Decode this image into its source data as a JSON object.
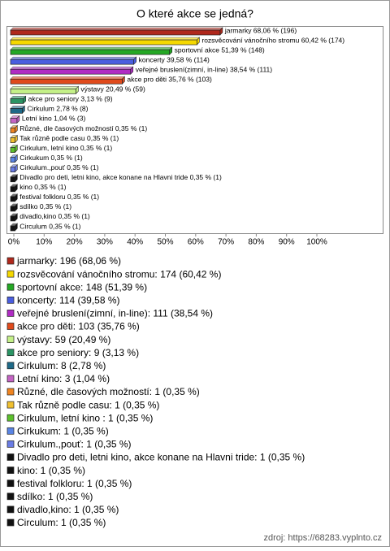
{
  "chart_data": {
    "type": "bar",
    "orientation": "horizontal",
    "title": "O které akce se jedná?",
    "values": [
      68.06,
      60.42,
      51.39,
      39.58,
      38.54,
      35.76,
      20.49,
      3.13,
      2.78,
      1.04,
      0.35,
      0.35,
      0.35,
      0.35,
      0.35,
      0.35,
      0.35,
      0.35,
      0.35,
      0.35,
      0.35
    ],
    "value_labels": [
      "jarmarky 68,06 % (196)",
      "rozsvěcování vánočního stromu 60,42 % (174)",
      "sportovní akce 51,39 % (148)",
      "koncerty 39,58 % (114)",
      "veřejné bruslení(zimní, in-line) 38,54 % (111)",
      "akce pro děti 35,76 % (103)",
      "výstavy 20,49 % (59)",
      "akce pro seniory 3,13 % (9)",
      "Cirkulum 2,78 % (8)",
      "Letní kino 1,04 % (3)",
      "Různé, dle časových možností 0,35 % (1)",
      "Tak různě podle casu 0,35 % (1)",
      "Cirkulum, letní kino  0,35 % (1)",
      "Cirkukum 0,35 % (1)",
      "Cirkulum.,pouť 0,35 % (1)",
      "Divadlo pro deti, letni kino, akce konane na Hlavni tride 0,35 % (1)",
      "kino 0,35 % (1)",
      "festival folkloru 0,35 % (1)",
      "sdílko 0,35 % (1)",
      "divadlo,kino 0,35 % (1)",
      "Circulum 0,35 % (1)"
    ],
    "colors": [
      "#b0281c",
      "#f5d800",
      "#24a824",
      "#4a5ee0",
      "#b02cc4",
      "#e04a1c",
      "#c4f088",
      "#2a9464",
      "#1e6a88",
      "#c464c4",
      "#f08420",
      "#f0c030",
      "#5cc02c",
      "#5a84e4",
      "#6a7ce4",
      "#111111",
      "#111111",
      "#111111",
      "#111111",
      "#111111",
      "#111111"
    ],
    "xlim": [
      0,
      100
    ],
    "xticks": [
      {
        "value": 0,
        "label": "0%"
      },
      {
        "value": 10,
        "label": "10%"
      },
      {
        "value": 20,
        "label": "20%"
      },
      {
        "value": 30,
        "label": "30%"
      },
      {
        "value": 40,
        "label": "40%"
      },
      {
        "value": 50,
        "label": "50%"
      },
      {
        "value": 60,
        "label": "60%"
      },
      {
        "value": 70,
        "label": "70%"
      },
      {
        "value": 80,
        "label": "80%"
      },
      {
        "value": 90,
        "label": "90%"
      },
      {
        "value": 100,
        "label": "100%"
      }
    ],
    "legend": [
      {
        "value": 196,
        "label": "jarmarky: 196 (68,06 %)"
      },
      {
        "value": 174,
        "label": "rozsvěcování vánočního stromu: 174 (60,42 %)"
      },
      {
        "value": 148,
        "label": "sportovní akce: 148 (51,39 %)"
      },
      {
        "value": 114,
        "label": "koncerty: 114 (39,58 %)"
      },
      {
        "value": 111,
        "label": "veřejné bruslení(zimní, in-line): 111 (38,54 %)"
      },
      {
        "value": 103,
        "label": "akce pro děti: 103 (35,76 %)"
      },
      {
        "value": 59,
        "label": "výstavy: 59 (20,49 %)"
      },
      {
        "value": 9,
        "label": "akce pro seniory: 9 (3,13 %)"
      },
      {
        "value": 8,
        "label": "Cirkulum: 8 (2,78 %)"
      },
      {
        "value": 3,
        "label": "Letní kino: 3 (1,04 %)"
      },
      {
        "value": 1,
        "label": "Různé, dle časových možností: 1 (0,35 %)"
      },
      {
        "value": 1,
        "label": "Tak různě podle casu: 1 (0,35 %)"
      },
      {
        "value": 1,
        "label": "Cirkulum, letní kino : 1 (0,35 %)"
      },
      {
        "value": 1,
        "label": "Cirkukum: 1 (0,35 %)"
      },
      {
        "value": 1,
        "label": "Cirkulum.,pouť: 1 (0,35 %)"
      },
      {
        "value": 1,
        "label": "Divadlo pro deti, letni kino, akce konane na Hlavni tride: 1 (0,35 %)"
      },
      {
        "value": 1,
        "label": "kino: 1 (0,35 %)"
      },
      {
        "value": 1,
        "label": "festival folkloru: 1 (0,35 %)"
      },
      {
        "value": 1,
        "label": "sdílko: 1 (0,35 %)"
      },
      {
        "value": 1,
        "label": "divadlo,kino: 1 (0,35 %)"
      },
      {
        "value": 1,
        "label": "Circulum: 1 (0,35 %)"
      }
    ],
    "source": "zdroj: https://68283.vyplnto.cz"
  }
}
